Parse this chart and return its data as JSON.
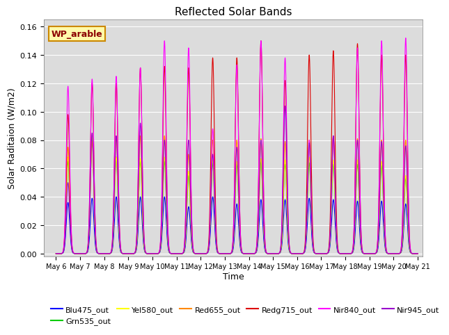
{
  "title": "Reflected Solar Bands",
  "xlabel": "Time",
  "ylabel": "Solar Raditaion (W/m2)",
  "annotation": "WP_arable",
  "xlim_days": [
    5.5,
    21.2
  ],
  "ylim": [
    -0.002,
    0.165
  ],
  "yticks": [
    0.0,
    0.02,
    0.04,
    0.06,
    0.08,
    0.1,
    0.12,
    0.14,
    0.16
  ],
  "xtick_labels": [
    "May 6",
    "May 7",
    "May 8",
    "May 9",
    "May 10",
    "May 11",
    "May 12",
    "May 13",
    "May 14",
    "May 15",
    "May 16",
    "May 17",
    "May 18",
    "May 19",
    "May 20",
    "May 21"
  ],
  "xtick_positions": [
    6,
    7,
    8,
    9,
    10,
    11,
    12,
    13,
    14,
    15,
    16,
    17,
    18,
    19,
    20,
    21
  ],
  "series_order": [
    "Blu475_out",
    "Grn535_out",
    "Yel580_out",
    "Red655_out",
    "Redg715_out",
    "Nir840_out",
    "Nir945_out"
  ],
  "colors": {
    "Blu475_out": "#0000ff",
    "Grn535_out": "#00cc00",
    "Yel580_out": "#ffff00",
    "Red655_out": "#ff8800",
    "Redg715_out": "#dd0000",
    "Nir840_out": "#ff00ff",
    "Nir945_out": "#9900cc"
  },
  "day_peaks": {
    "6": {
      "Blu475_out": 0.036,
      "Grn535_out": 0.065,
      "Yel580_out": 0.068,
      "Red655_out": 0.075,
      "Redg715_out": 0.098,
      "Nir840_out": 0.118,
      "Nir945_out": 0.05
    },
    "7": {
      "Blu475_out": 0.039,
      "Grn535_out": 0.082,
      "Yel580_out": 0.084,
      "Red655_out": 0.079,
      "Redg715_out": 0.12,
      "Nir840_out": 0.123,
      "Nir945_out": 0.085
    },
    "8": {
      "Blu475_out": 0.04,
      "Grn535_out": 0.068,
      "Yel580_out": 0.068,
      "Red655_out": 0.082,
      "Redg715_out": 0.12,
      "Nir840_out": 0.125,
      "Nir945_out": 0.083
    },
    "9": {
      "Blu475_out": 0.04,
      "Grn535_out": 0.065,
      "Yel580_out": 0.067,
      "Red655_out": 0.083,
      "Redg715_out": 0.131,
      "Nir840_out": 0.131,
      "Nir945_out": 0.092
    },
    "10": {
      "Blu475_out": 0.04,
      "Grn535_out": 0.065,
      "Yel580_out": 0.068,
      "Red655_out": 0.083,
      "Redg715_out": 0.132,
      "Nir840_out": 0.15,
      "Nir945_out": 0.08
    },
    "11": {
      "Blu475_out": 0.033,
      "Grn535_out": 0.055,
      "Yel580_out": 0.058,
      "Red655_out": 0.07,
      "Redg715_out": 0.131,
      "Nir840_out": 0.145,
      "Nir945_out": 0.08
    },
    "12": {
      "Blu475_out": 0.04,
      "Grn535_out": 0.064,
      "Yel580_out": 0.066,
      "Red655_out": 0.08,
      "Redg715_out": 0.138,
      "Nir840_out": 0.088,
      "Nir945_out": 0.07
    },
    "13": {
      "Blu475_out": 0.035,
      "Grn535_out": 0.063,
      "Yel580_out": 0.065,
      "Red655_out": 0.08,
      "Redg715_out": 0.138,
      "Nir840_out": 0.133,
      "Nir945_out": 0.075
    },
    "14": {
      "Blu475_out": 0.038,
      "Grn535_out": 0.065,
      "Yel580_out": 0.067,
      "Red655_out": 0.081,
      "Redg715_out": 0.15,
      "Nir840_out": 0.15,
      "Nir945_out": 0.08
    },
    "15": {
      "Blu475_out": 0.038,
      "Grn535_out": 0.063,
      "Yel580_out": 0.066,
      "Red655_out": 0.079,
      "Redg715_out": 0.122,
      "Nir840_out": 0.138,
      "Nir945_out": 0.104
    },
    "16": {
      "Blu475_out": 0.039,
      "Grn535_out": 0.064,
      "Yel580_out": 0.068,
      "Red655_out": 0.08,
      "Redg715_out": 0.14,
      "Nir840_out": 0.08,
      "Nir945_out": 0.078
    },
    "17": {
      "Blu475_out": 0.038,
      "Grn535_out": 0.063,
      "Yel580_out": 0.066,
      "Red655_out": 0.082,
      "Redg715_out": 0.143,
      "Nir840_out": 0.083,
      "Nir945_out": 0.083
    },
    "18": {
      "Blu475_out": 0.037,
      "Grn535_out": 0.063,
      "Yel580_out": 0.066,
      "Red655_out": 0.081,
      "Redg715_out": 0.148,
      "Nir840_out": 0.145,
      "Nir945_out": 0.08
    },
    "19": {
      "Blu475_out": 0.037,
      "Grn535_out": 0.062,
      "Yel580_out": 0.065,
      "Red655_out": 0.08,
      "Redg715_out": 0.14,
      "Nir840_out": 0.15,
      "Nir945_out": 0.079
    },
    "20": {
      "Blu475_out": 0.035,
      "Grn535_out": 0.053,
      "Yel580_out": 0.055,
      "Red655_out": 0.08,
      "Redg715_out": 0.14,
      "Nir840_out": 0.152,
      "Nir945_out": 0.076
    }
  },
  "bg_color": "#dcdcdc",
  "fig_color": "#ffffff"
}
